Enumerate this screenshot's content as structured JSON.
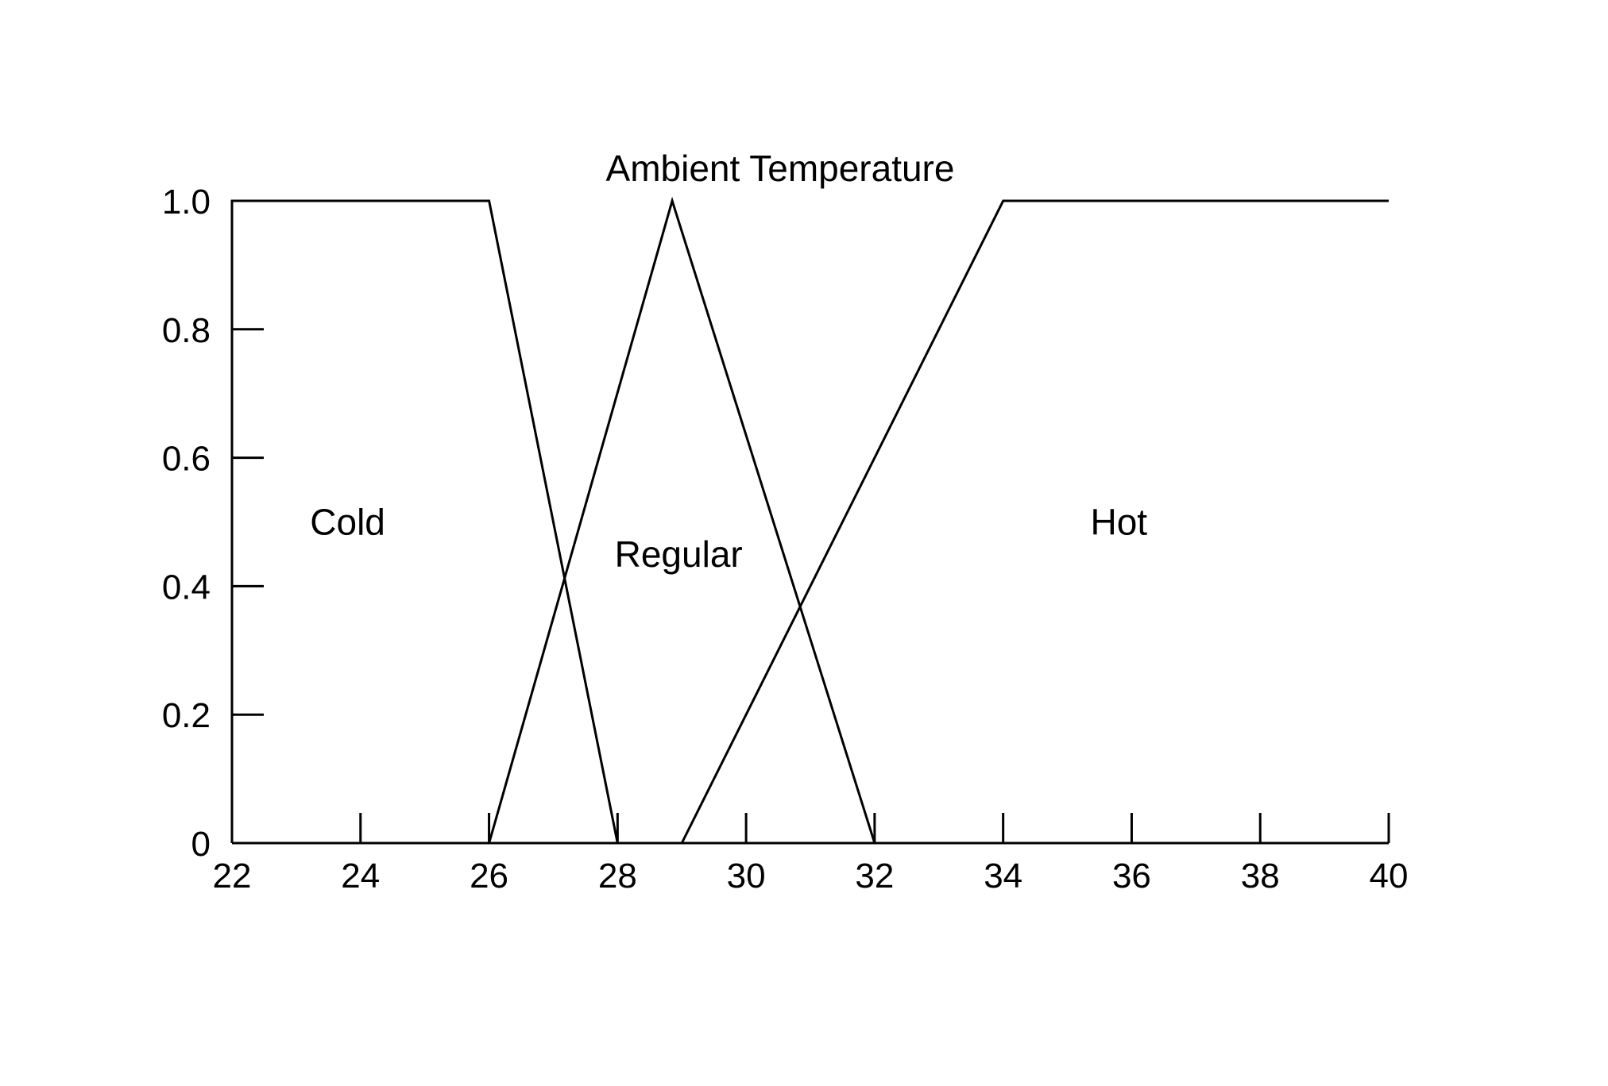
{
  "chart_data": {
    "type": "line",
    "title": "Ambient Temperature",
    "xlabel": "",
    "ylabel": "",
    "xlim": [
      22,
      40
    ],
    "ylim": [
      0,
      1.0
    ],
    "x_ticks": [
      22,
      24,
      26,
      28,
      30,
      32,
      34,
      36,
      38,
      40
    ],
    "x_tick_labels": [
      "22",
      "24",
      "26",
      "28",
      "30",
      "32",
      "34",
      "36",
      "38",
      "40"
    ],
    "y_ticks": [
      0,
      0.2,
      0.4,
      0.6,
      0.8,
      1.0
    ],
    "y_tick_labels": [
      "0",
      "0.2",
      "0.4",
      "0.6",
      "0.8",
      "1.0"
    ],
    "grid": false,
    "legend": "none",
    "line_color": "#000000",
    "series": [
      {
        "name": "Cold",
        "points": [
          [
            22,
            0
          ],
          [
            22,
            1.0
          ],
          [
            26,
            1.0
          ],
          [
            28,
            0
          ]
        ]
      },
      {
        "name": "Regular",
        "points": [
          [
            26,
            0
          ],
          [
            28.85,
            1.0
          ],
          [
            32,
            0
          ]
        ]
      },
      {
        "name": "Hot",
        "points": [
          [
            29,
            0
          ],
          [
            34,
            1.0
          ],
          [
            40,
            1.0
          ]
        ]
      }
    ],
    "region_labels": [
      {
        "text": "Cold",
        "x": 23.8,
        "y": 0.5
      },
      {
        "text": "Regular",
        "x": 28.95,
        "y": 0.45
      },
      {
        "text": "Hot",
        "x": 35.8,
        "y": 0.5
      }
    ]
  }
}
